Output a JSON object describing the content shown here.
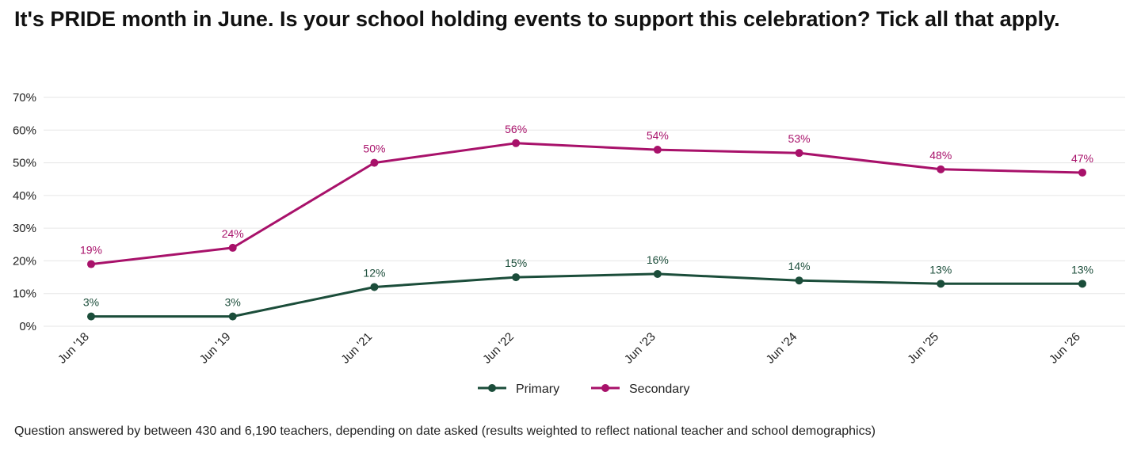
{
  "colors": {
    "primary": "#1b4d3a",
    "secondary": "#a8116a",
    "grid": "#e6e6e6"
  },
  "chart_data": {
    "type": "line",
    "title": "It's PRIDE month in June. Is your school holding events to support this celebration? Tick all that apply.",
    "categories": [
      "Jun '18",
      "Jun '19",
      "Jun '21",
      "Jun '22",
      "Jun '23",
      "Jun '24",
      "Jun '25",
      "Jun '26"
    ],
    "series": [
      {
        "name": "Primary",
        "values": [
          3,
          3,
          12,
          15,
          16,
          14,
          13,
          13
        ],
        "labels": [
          "3%",
          "3%",
          "12%",
          "15%",
          "16%",
          "14%",
          "13%",
          "13%"
        ],
        "color": "#1b4d3a"
      },
      {
        "name": "Secondary",
        "values": [
          19,
          24,
          50,
          56,
          54,
          53,
          48,
          47
        ],
        "labels": [
          "19%",
          "24%",
          "50%",
          "56%",
          "54%",
          "53%",
          "48%",
          "47%"
        ],
        "color": "#a8116a"
      }
    ],
    "ylim": [
      0,
      70
    ],
    "yticks": [
      0,
      10,
      20,
      30,
      40,
      50,
      60,
      70
    ],
    "ytick_labels": [
      "0%",
      "10%",
      "20%",
      "30%",
      "40%",
      "50%",
      "60%",
      "70%"
    ],
    "grid": true,
    "legend": "bottom-center",
    "xlabel": "",
    "ylabel": "",
    "footnote": "Question answered by between 430 and 6,190 teachers, depending on date asked (results weighted to reflect national teacher and school demographics)"
  }
}
